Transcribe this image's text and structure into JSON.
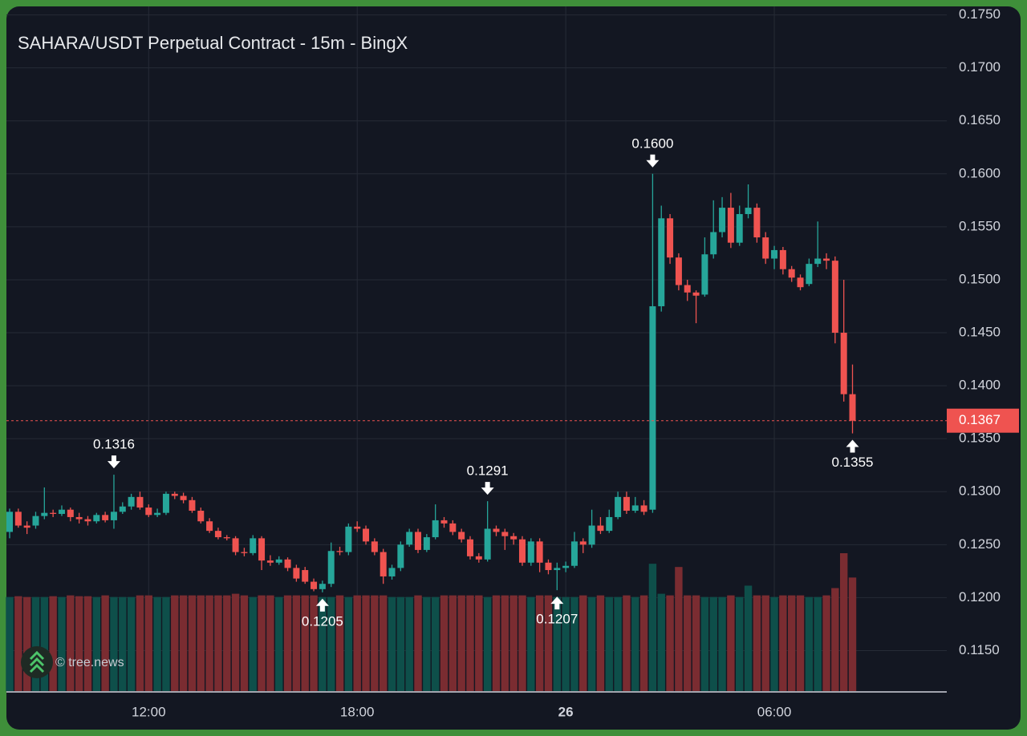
{
  "chart_data": {
    "type": "candlestick",
    "title": "SAHARA/USDT Perpetual Contract - 15m - BingX",
    "watermark": "© tree.news",
    "categories": [
      null,
      null,
      null,
      null,
      null,
      null,
      null,
      null,
      null,
      null,
      null,
      null,
      null,
      null,
      null,
      null,
      "12:00",
      null,
      null,
      null,
      null,
      null,
      null,
      null,
      null,
      null,
      null,
      null,
      null,
      null,
      null,
      null,
      null,
      null,
      null,
      null,
      null,
      null,
      null,
      null,
      "18:00",
      null,
      null,
      null,
      null,
      null,
      null,
      null,
      null,
      null,
      null,
      null,
      null,
      null,
      null,
      null,
      null,
      null,
      null,
      null,
      null,
      null,
      null,
      null,
      "26",
      null,
      null,
      null,
      null,
      null,
      null,
      null,
      null,
      null,
      null,
      null,
      null,
      null,
      null,
      null,
      null,
      null,
      null,
      null,
      null,
      null,
      null,
      null,
      "06:00",
      null,
      null,
      null,
      null,
      null,
      null,
      null,
      null,
      null
    ],
    "ohlc": [
      [
        0.1262,
        0.1284,
        0.1256,
        0.1281
      ],
      [
        0.1281,
        0.1284,
        0.1266,
        0.1268
      ],
      [
        0.1268,
        0.1272,
        0.126,
        0.1266
      ],
      [
        0.1268,
        0.1281,
        0.1265,
        0.1277
      ],
      [
        0.1277,
        0.1304,
        0.1274,
        0.128
      ],
      [
        0.128,
        0.1283,
        0.1276,
        0.1279
      ],
      [
        0.1279,
        0.1287,
        0.1277,
        0.1283
      ],
      [
        0.1283,
        0.1285,
        0.1272,
        0.1276
      ],
      [
        0.1276,
        0.128,
        0.127,
        0.1274
      ],
      [
        0.1274,
        0.1277,
        0.1268,
        0.1272
      ],
      [
        0.1272,
        0.128,
        0.127,
        0.1278
      ],
      [
        0.1278,
        0.1281,
        0.1271,
        0.1273
      ],
      [
        0.1273,
        0.1316,
        0.1265,
        0.1281
      ],
      [
        0.1281,
        0.129,
        0.1279,
        0.1286
      ],
      [
        0.1286,
        0.1298,
        0.1283,
        0.1295
      ],
      [
        0.1295,
        0.13,
        0.1283,
        0.1285
      ],
      [
        0.1285,
        0.1288,
        0.1276,
        0.1278
      ],
      [
        0.1278,
        0.1284,
        0.1276,
        0.128
      ],
      [
        0.128,
        0.13,
        0.1278,
        0.1298
      ],
      [
        0.1298,
        0.13,
        0.1293,
        0.1296
      ],
      [
        0.1296,
        0.1299,
        0.1289,
        0.1292
      ],
      [
        0.1292,
        0.1295,
        0.128,
        0.1282
      ],
      [
        0.1282,
        0.1285,
        0.127,
        0.1272
      ],
      [
        0.1272,
        0.1275,
        0.1261,
        0.1263
      ],
      [
        0.1263,
        0.1266,
        0.1255,
        0.1257
      ],
      [
        0.1257,
        0.1259,
        0.1254,
        0.1256
      ],
      [
        0.1256,
        0.1258,
        0.124,
        0.1243
      ],
      [
        0.1243,
        0.1247,
        0.1239,
        0.1242
      ],
      [
        0.1242,
        0.1259,
        0.124,
        0.1256
      ],
      [
        0.1256,
        0.1258,
        0.1226,
        0.1235
      ],
      [
        0.1235,
        0.124,
        0.123,
        0.1233
      ],
      [
        0.1233,
        0.1239,
        0.1231,
        0.1236
      ],
      [
        0.1236,
        0.1238,
        0.1225,
        0.1228
      ],
      [
        0.1228,
        0.1231,
        0.1215,
        0.1218
      ],
      [
        0.1226,
        0.1229,
        0.1213,
        0.1215
      ],
      [
        0.1215,
        0.1218,
        0.1206,
        0.1208
      ],
      [
        0.1208,
        0.1216,
        0.1205,
        0.1213
      ],
      [
        0.1213,
        0.1252,
        0.121,
        0.1244
      ],
      [
        0.1244,
        0.1248,
        0.124,
        0.1243
      ],
      [
        0.1243,
        0.127,
        0.124,
        0.1267
      ],
      [
        0.1267,
        0.1272,
        0.1262,
        0.1265
      ],
      [
        0.1265,
        0.1268,
        0.125,
        0.1253
      ],
      [
        0.1253,
        0.1256,
        0.124,
        0.1243
      ],
      [
        0.1243,
        0.1246,
        0.1213,
        0.122
      ],
      [
        0.122,
        0.1231,
        0.1217,
        0.1228
      ],
      [
        0.1228,
        0.1253,
        0.1225,
        0.125
      ],
      [
        0.125,
        0.1265,
        0.1248,
        0.1262
      ],
      [
        0.1262,
        0.1265,
        0.1242,
        0.1245
      ],
      [
        0.1245,
        0.126,
        0.1243,
        0.1257
      ],
      [
        0.1257,
        0.1288,
        0.1255,
        0.1273
      ],
      [
        0.1273,
        0.1276,
        0.1266,
        0.127
      ],
      [
        0.127,
        0.1273,
        0.1259,
        0.1262
      ],
      [
        0.1262,
        0.1265,
        0.1252,
        0.1255
      ],
      [
        0.1255,
        0.1258,
        0.1236,
        0.1239
      ],
      [
        0.1239,
        0.1242,
        0.1233,
        0.1236
      ],
      [
        0.1236,
        0.1291,
        0.1234,
        0.1265
      ],
      [
        0.1265,
        0.1268,
        0.1258,
        0.1262
      ],
      [
        0.1262,
        0.1265,
        0.1245,
        0.1258
      ],
      [
        0.1258,
        0.1261,
        0.125,
        0.1255
      ],
      [
        0.1255,
        0.1258,
        0.123,
        0.1233
      ],
      [
        0.1233,
        0.1256,
        0.123,
        0.1253
      ],
      [
        0.1253,
        0.1256,
        0.1224,
        0.1233
      ],
      [
        0.1233,
        0.1236,
        0.1222,
        0.1226
      ],
      [
        0.1226,
        0.1233,
        0.1207,
        0.1228
      ],
      [
        0.1228,
        0.1234,
        0.1224,
        0.123
      ],
      [
        0.123,
        0.1262,
        0.1228,
        0.1253
      ],
      [
        0.1253,
        0.1256,
        0.1242,
        0.125
      ],
      [
        0.125,
        0.1283,
        0.1247,
        0.1268
      ],
      [
        0.1268,
        0.1276,
        0.126,
        0.1263
      ],
      [
        0.1263,
        0.1283,
        0.1261,
        0.1276
      ],
      [
        0.1276,
        0.13,
        0.1274,
        0.1295
      ],
      [
        0.1295,
        0.13,
        0.1279,
        0.1282
      ],
      [
        0.1282,
        0.1295,
        0.128,
        0.1287
      ],
      [
        0.1287,
        0.1292,
        0.1278,
        0.1281
      ],
      [
        0.1283,
        0.16,
        0.128,
        0.1475
      ],
      [
        0.1475,
        0.157,
        0.147,
        0.1558
      ],
      [
        0.1558,
        0.1562,
        0.1515,
        0.1521
      ],
      [
        0.1521,
        0.1525,
        0.149,
        0.1495
      ],
      [
        0.1495,
        0.15,
        0.148,
        0.1488
      ],
      [
        0.1488,
        0.149,
        0.1459,
        0.1485
      ],
      [
        0.1486,
        0.154,
        0.1484,
        0.1524
      ],
      [
        0.1524,
        0.1575,
        0.152,
        0.1545
      ],
      [
        0.1545,
        0.1578,
        0.154,
        0.1568
      ],
      [
        0.1568,
        0.1582,
        0.153,
        0.1535
      ],
      [
        0.1535,
        0.157,
        0.1532,
        0.1562
      ],
      [
        0.1562,
        0.159,
        0.1558,
        0.1568
      ],
      [
        0.1568,
        0.1572,
        0.1535,
        0.154
      ],
      [
        0.154,
        0.1545,
        0.1515,
        0.152
      ],
      [
        0.152,
        0.1532,
        0.151,
        0.1528
      ],
      [
        0.1528,
        0.1531,
        0.1505,
        0.151
      ],
      [
        0.151,
        0.1513,
        0.1498,
        0.1502
      ],
      [
        0.1502,
        0.1505,
        0.149,
        0.1493
      ],
      [
        0.1496,
        0.152,
        0.1494,
        0.1515
      ],
      [
        0.1515,
        0.1555,
        0.1512,
        0.152
      ],
      [
        0.152,
        0.1525,
        0.151,
        0.1518
      ],
      [
        0.1518,
        0.1522,
        0.144,
        0.145
      ],
      [
        0.145,
        0.15,
        0.1385,
        0.1392
      ],
      [
        0.1392,
        0.142,
        0.1355,
        0.1367
      ]
    ],
    "volume": [
      116,
      117,
      116,
      116,
      116,
      117,
      116,
      118,
      117,
      117,
      116,
      118,
      116,
      116,
      116,
      118,
      118,
      116,
      116,
      118,
      118,
      118,
      118,
      118,
      118,
      118,
      120,
      118,
      116,
      118,
      118,
      116,
      118,
      118,
      118,
      118,
      116,
      116,
      118,
      116,
      118,
      118,
      118,
      118,
      116,
      116,
      116,
      118,
      116,
      116,
      118,
      118,
      118,
      118,
      118,
      116,
      118,
      118,
      118,
      118,
      116,
      118,
      118,
      116,
      116,
      116,
      118,
      116,
      118,
      116,
      116,
      118,
      116,
      118,
      157,
      120,
      118,
      153,
      118,
      118,
      116,
      116,
      116,
      118,
      116,
      130,
      118,
      118,
      116,
      118,
      118,
      118,
      116,
      116,
      118,
      127,
      170,
      140
    ],
    "up_color": "#26a69a",
    "down_color": "#ef5350",
    "up_volume_color": "#0e4f4a",
    "down_volume_color": "#7a2c31",
    "ylim": [
      0.1111,
      0.1758
    ],
    "yticks": [
      {
        "value": 0.115,
        "label": "0.1150"
      },
      {
        "value": 0.12,
        "label": "0.1200"
      },
      {
        "value": 0.125,
        "label": "0.1250"
      },
      {
        "value": 0.13,
        "label": "0.1300"
      },
      {
        "value": 0.135,
        "label": "0.1350"
      },
      {
        "value": 0.14,
        "label": "0.1400"
      },
      {
        "value": 0.145,
        "label": "0.1450"
      },
      {
        "value": 0.15,
        "label": "0.1500"
      },
      {
        "value": 0.155,
        "label": "0.1550"
      },
      {
        "value": 0.16,
        "label": "0.1600"
      },
      {
        "value": 0.165,
        "label": "0.1650"
      },
      {
        "value": 0.17,
        "label": "0.1700"
      },
      {
        "value": 0.175,
        "label": "0.1750"
      }
    ],
    "grid": true,
    "annotations": [
      {
        "value": 0.1316,
        "label": "0.1316"
      },
      {
        "value": 0.1205,
        "label": "0.1205"
      },
      {
        "value": 0.1291,
        "label": "0.1291"
      },
      {
        "value": 0.1207,
        "label": "0.1207"
      },
      {
        "value": 0.16,
        "label": "0.1600"
      },
      {
        "value": 0.1355,
        "label": "0.1355"
      }
    ],
    "last_price": {
      "value": 0.1367,
      "label": "0.1367"
    }
  }
}
